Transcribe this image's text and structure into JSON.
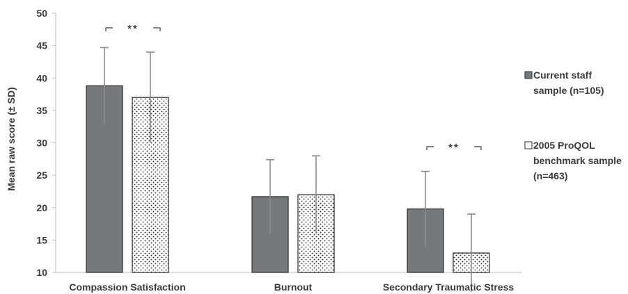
{
  "chart_data": {
    "type": "bar",
    "title": "",
    "ylabel": "Mean raw score (± SD)",
    "xlabel": "",
    "ylim": [
      10,
      50
    ],
    "yticks": [
      "10",
      "15",
      "20",
      "25",
      "30",
      "35",
      "40",
      "45",
      "50"
    ],
    "categories": [
      "Compassion Satisfaction",
      "Burnout",
      "Secondary Traumatic Stress"
    ],
    "series": [
      {
        "name": "Current staff sample (n=105)",
        "legend_lines": [
          "Current staff",
          "sample (n=105)"
        ],
        "values": [
          38.8,
          21.7,
          19.8
        ],
        "sd": [
          5.9,
          5.7,
          5.8
        ],
        "color": "#76787b",
        "fill": "solid"
      },
      {
        "name": "2005 ProQOL benchmark sample (n=463)",
        "legend_lines": [
          "2005 ProQOL",
          "benchmark sample",
          "(n=463)"
        ],
        "values": [
          37.0,
          22.0,
          13.0
        ],
        "sd": [
          7.0,
          6.0,
          6.0
        ],
        "color": "#ffffff",
        "fill": "dotted"
      }
    ],
    "significance": [
      {
        "category_index": 0,
        "label": "**"
      },
      {
        "category_index": 2,
        "label": "**"
      }
    ],
    "grid": false,
    "legend_position": "right"
  }
}
